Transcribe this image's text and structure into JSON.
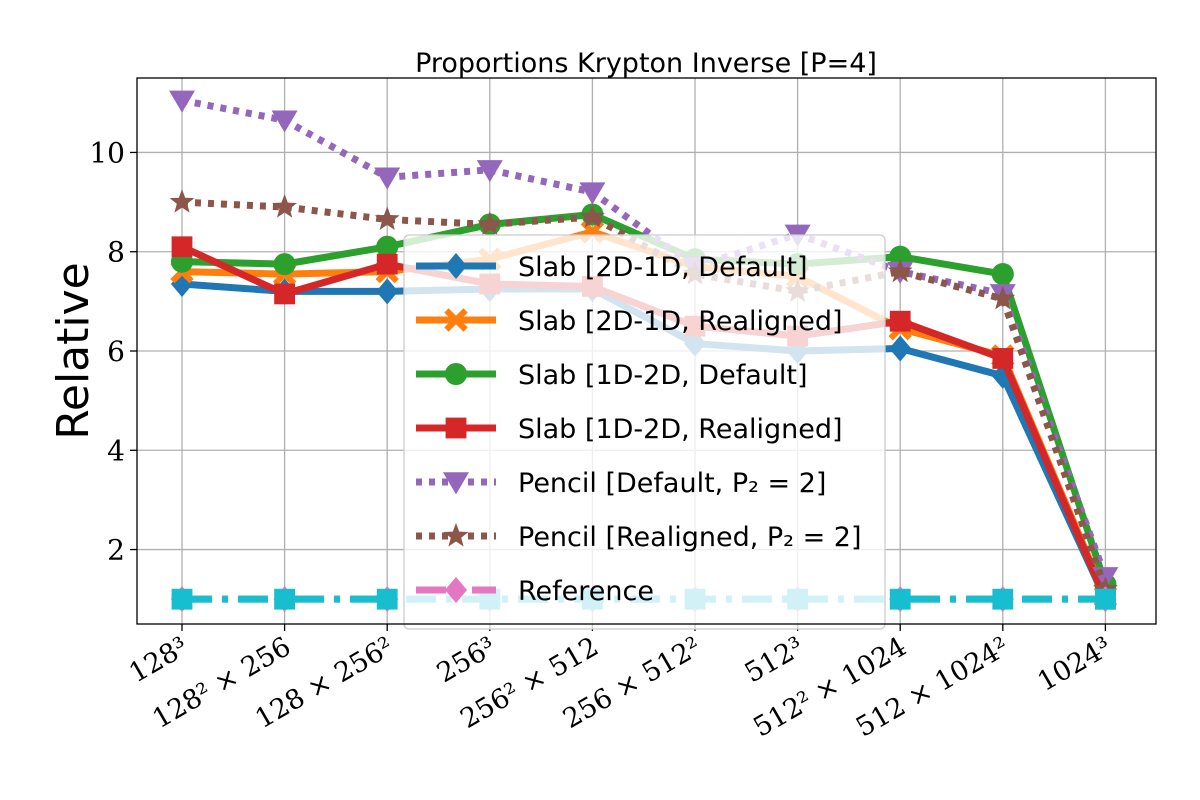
{
  "chart_data": {
    "type": "line",
    "title": "Proportions Krypton Inverse [P=4]",
    "xlabel": "",
    "ylabel": "Relative",
    "ylim": [
      0.5,
      11.5
    ],
    "yticks": [
      2,
      4,
      6,
      8,
      10
    ],
    "grid": true,
    "legend_position": "center",
    "categories": [
      "128³",
      "128² × 256",
      "128 × 256²",
      "256³",
      "256² × 512",
      "256 × 512²",
      "512³",
      "512² × 1024",
      "512 × 1024²",
      "1024³"
    ],
    "series": [
      {
        "name": "Slab [2D-1D, Default]",
        "color": "#1f77b4",
        "marker": "diamond",
        "linestyle": "solid",
        "values": [
          7.35,
          7.2,
          7.2,
          7.25,
          7.25,
          6.15,
          6.0,
          6.05,
          5.5,
          1.0
        ]
      },
      {
        "name": "Slab [2D-1D, Realigned]",
        "color": "#ff7f0e",
        "marker": "x",
        "linestyle": "solid",
        "values": [
          7.6,
          7.55,
          7.6,
          7.85,
          8.4,
          7.7,
          7.5,
          6.45,
          5.9,
          1.05
        ]
      },
      {
        "name": "Slab [1D-2D, Default]",
        "color": "#2ca02c",
        "marker": "circle",
        "linestyle": "solid",
        "values": [
          7.8,
          7.75,
          8.1,
          8.55,
          8.75,
          7.85,
          7.75,
          7.9,
          7.55,
          1.3
        ]
      },
      {
        "name": "Slab [1D-2D, Realigned]",
        "color": "#d62728",
        "marker": "square",
        "linestyle": "solid",
        "values": [
          8.1,
          7.15,
          7.75,
          7.35,
          7.3,
          6.5,
          6.3,
          6.6,
          5.85,
          1.0
        ]
      },
      {
        "name": "Pencil [Default, P₂ = 2]",
        "color": "#9467bd",
        "marker": "triangle-down",
        "linestyle": "dotted",
        "values": [
          11.05,
          10.65,
          9.5,
          9.65,
          9.2,
          7.7,
          8.35,
          7.6,
          7.15,
          1.45
        ]
      },
      {
        "name": "Pencil [Realigned, P₂ = 2]",
        "color": "#8c564b",
        "marker": "star",
        "linestyle": "dotted",
        "values": [
          9.0,
          8.9,
          8.65,
          8.55,
          8.7,
          7.55,
          7.2,
          7.6,
          7.05,
          1.2
        ]
      },
      {
        "name": "Reference",
        "color": "#e377c2",
        "marker": "diamond",
        "linestyle": "dashdot",
        "values": [
          1,
          1,
          1,
          1,
          1,
          1,
          1,
          1,
          1,
          1
        ]
      },
      {
        "name": "",
        "color": "#17becf",
        "marker": "square",
        "linestyle": "dashdot",
        "values": [
          1,
          1,
          1,
          1,
          1,
          1,
          1,
          1,
          1,
          1
        ]
      }
    ]
  }
}
